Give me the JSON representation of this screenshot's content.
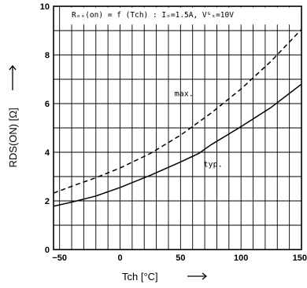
{
  "chart_data": {
    "type": "line",
    "title": "",
    "condition_text": "Rₒₛ(on) = f (Tch) : Iₒ=1.5A, Vᴳₛ=10V",
    "xlabel": "Tch [°C]",
    "ylabel": "RDS(ON) [Ω]",
    "xlim": [
      -55,
      150
    ],
    "ylim": [
      0,
      10
    ],
    "xticks": [
      -50,
      0,
      50,
      100,
      150
    ],
    "xtick_labels": [
      "−50",
      "0",
      "50",
      "100",
      "150"
    ],
    "yticks": [
      0,
      2,
      4,
      6,
      8,
      10
    ],
    "ytick_labels": [
      "0",
      "2",
      "4",
      "6",
      "8",
      "10"
    ],
    "x_minor_step": 10,
    "y_minor_step": 1,
    "grid": true,
    "series": [
      {
        "name": "max.",
        "style": "dashed",
        "x": [
          -55,
          -40,
          -20,
          0,
          25,
          50,
          75,
          100,
          125,
          150
        ],
        "y": [
          2.32,
          2.6,
          2.95,
          3.35,
          3.95,
          4.7,
          5.6,
          6.6,
          7.75,
          9.05
        ]
      },
      {
        "name": "typ.",
        "style": "solid",
        "x": [
          -55,
          -40,
          -20,
          0,
          25,
          50,
          65,
          75,
          100,
          125,
          150
        ],
        "y": [
          1.78,
          1.95,
          2.2,
          2.55,
          3.05,
          3.6,
          3.95,
          4.3,
          5.05,
          5.85,
          6.8
        ]
      }
    ],
    "annotations": [
      "max.",
      "typ."
    ]
  }
}
